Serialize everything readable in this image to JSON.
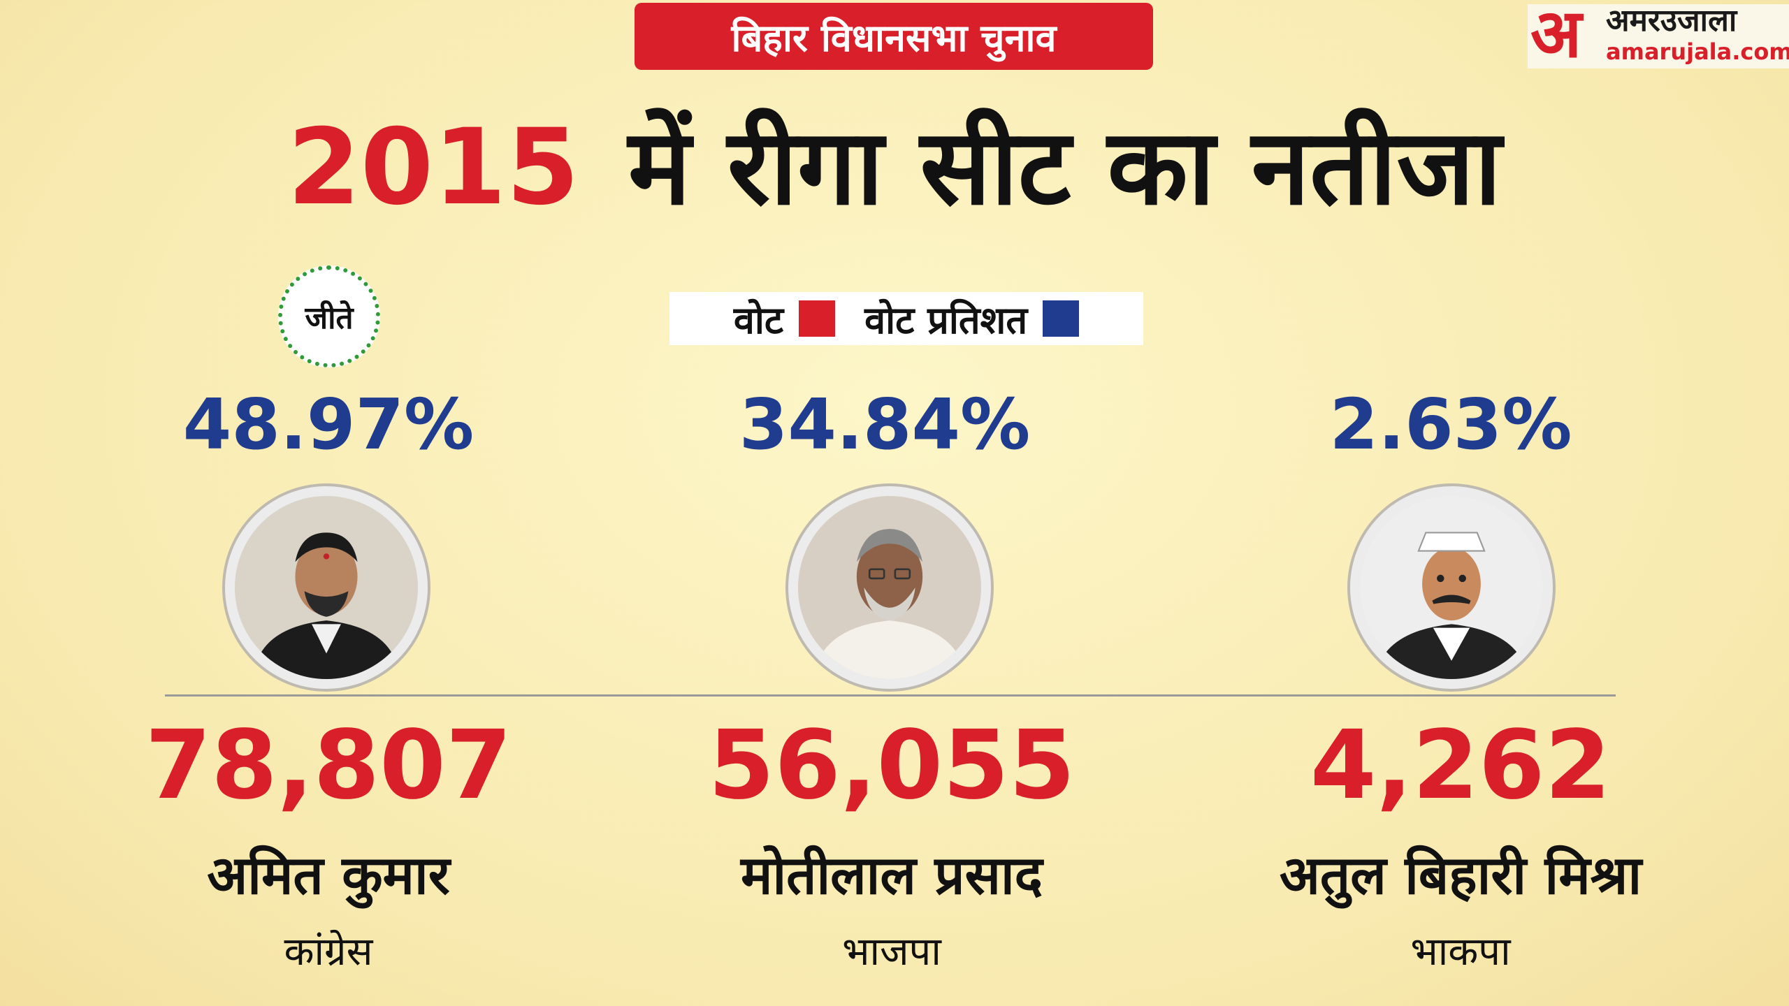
{
  "banner": "बिहार विधानसभा चुनाव",
  "logo": {
    "mark": "अ",
    "hindi": "अमरउजाला",
    "english": "amarujala.com"
  },
  "title": {
    "year": "2015",
    "text": "में रीगा सीट का नतीजा"
  },
  "legend": {
    "votes_label": "वोट",
    "percent_label": "वोट प्रतिशत",
    "votes_color": "#d81f2a",
    "percent_color": "#203c8e"
  },
  "winner_badge": "जीते",
  "candidates": [
    {
      "percent": "48.97%",
      "votes": "78,807",
      "name": "अमित कुमार",
      "party": "कांग्रेस"
    },
    {
      "percent": "34.84%",
      "votes": "56,055",
      "name": "मोतीलाल प्रसाद",
      "party": "भाजपा"
    },
    {
      "percent": "2.63%",
      "votes": "4,262",
      "name": "अतुल बिहारी मिश्रा",
      "party": "भाकपा"
    }
  ]
}
